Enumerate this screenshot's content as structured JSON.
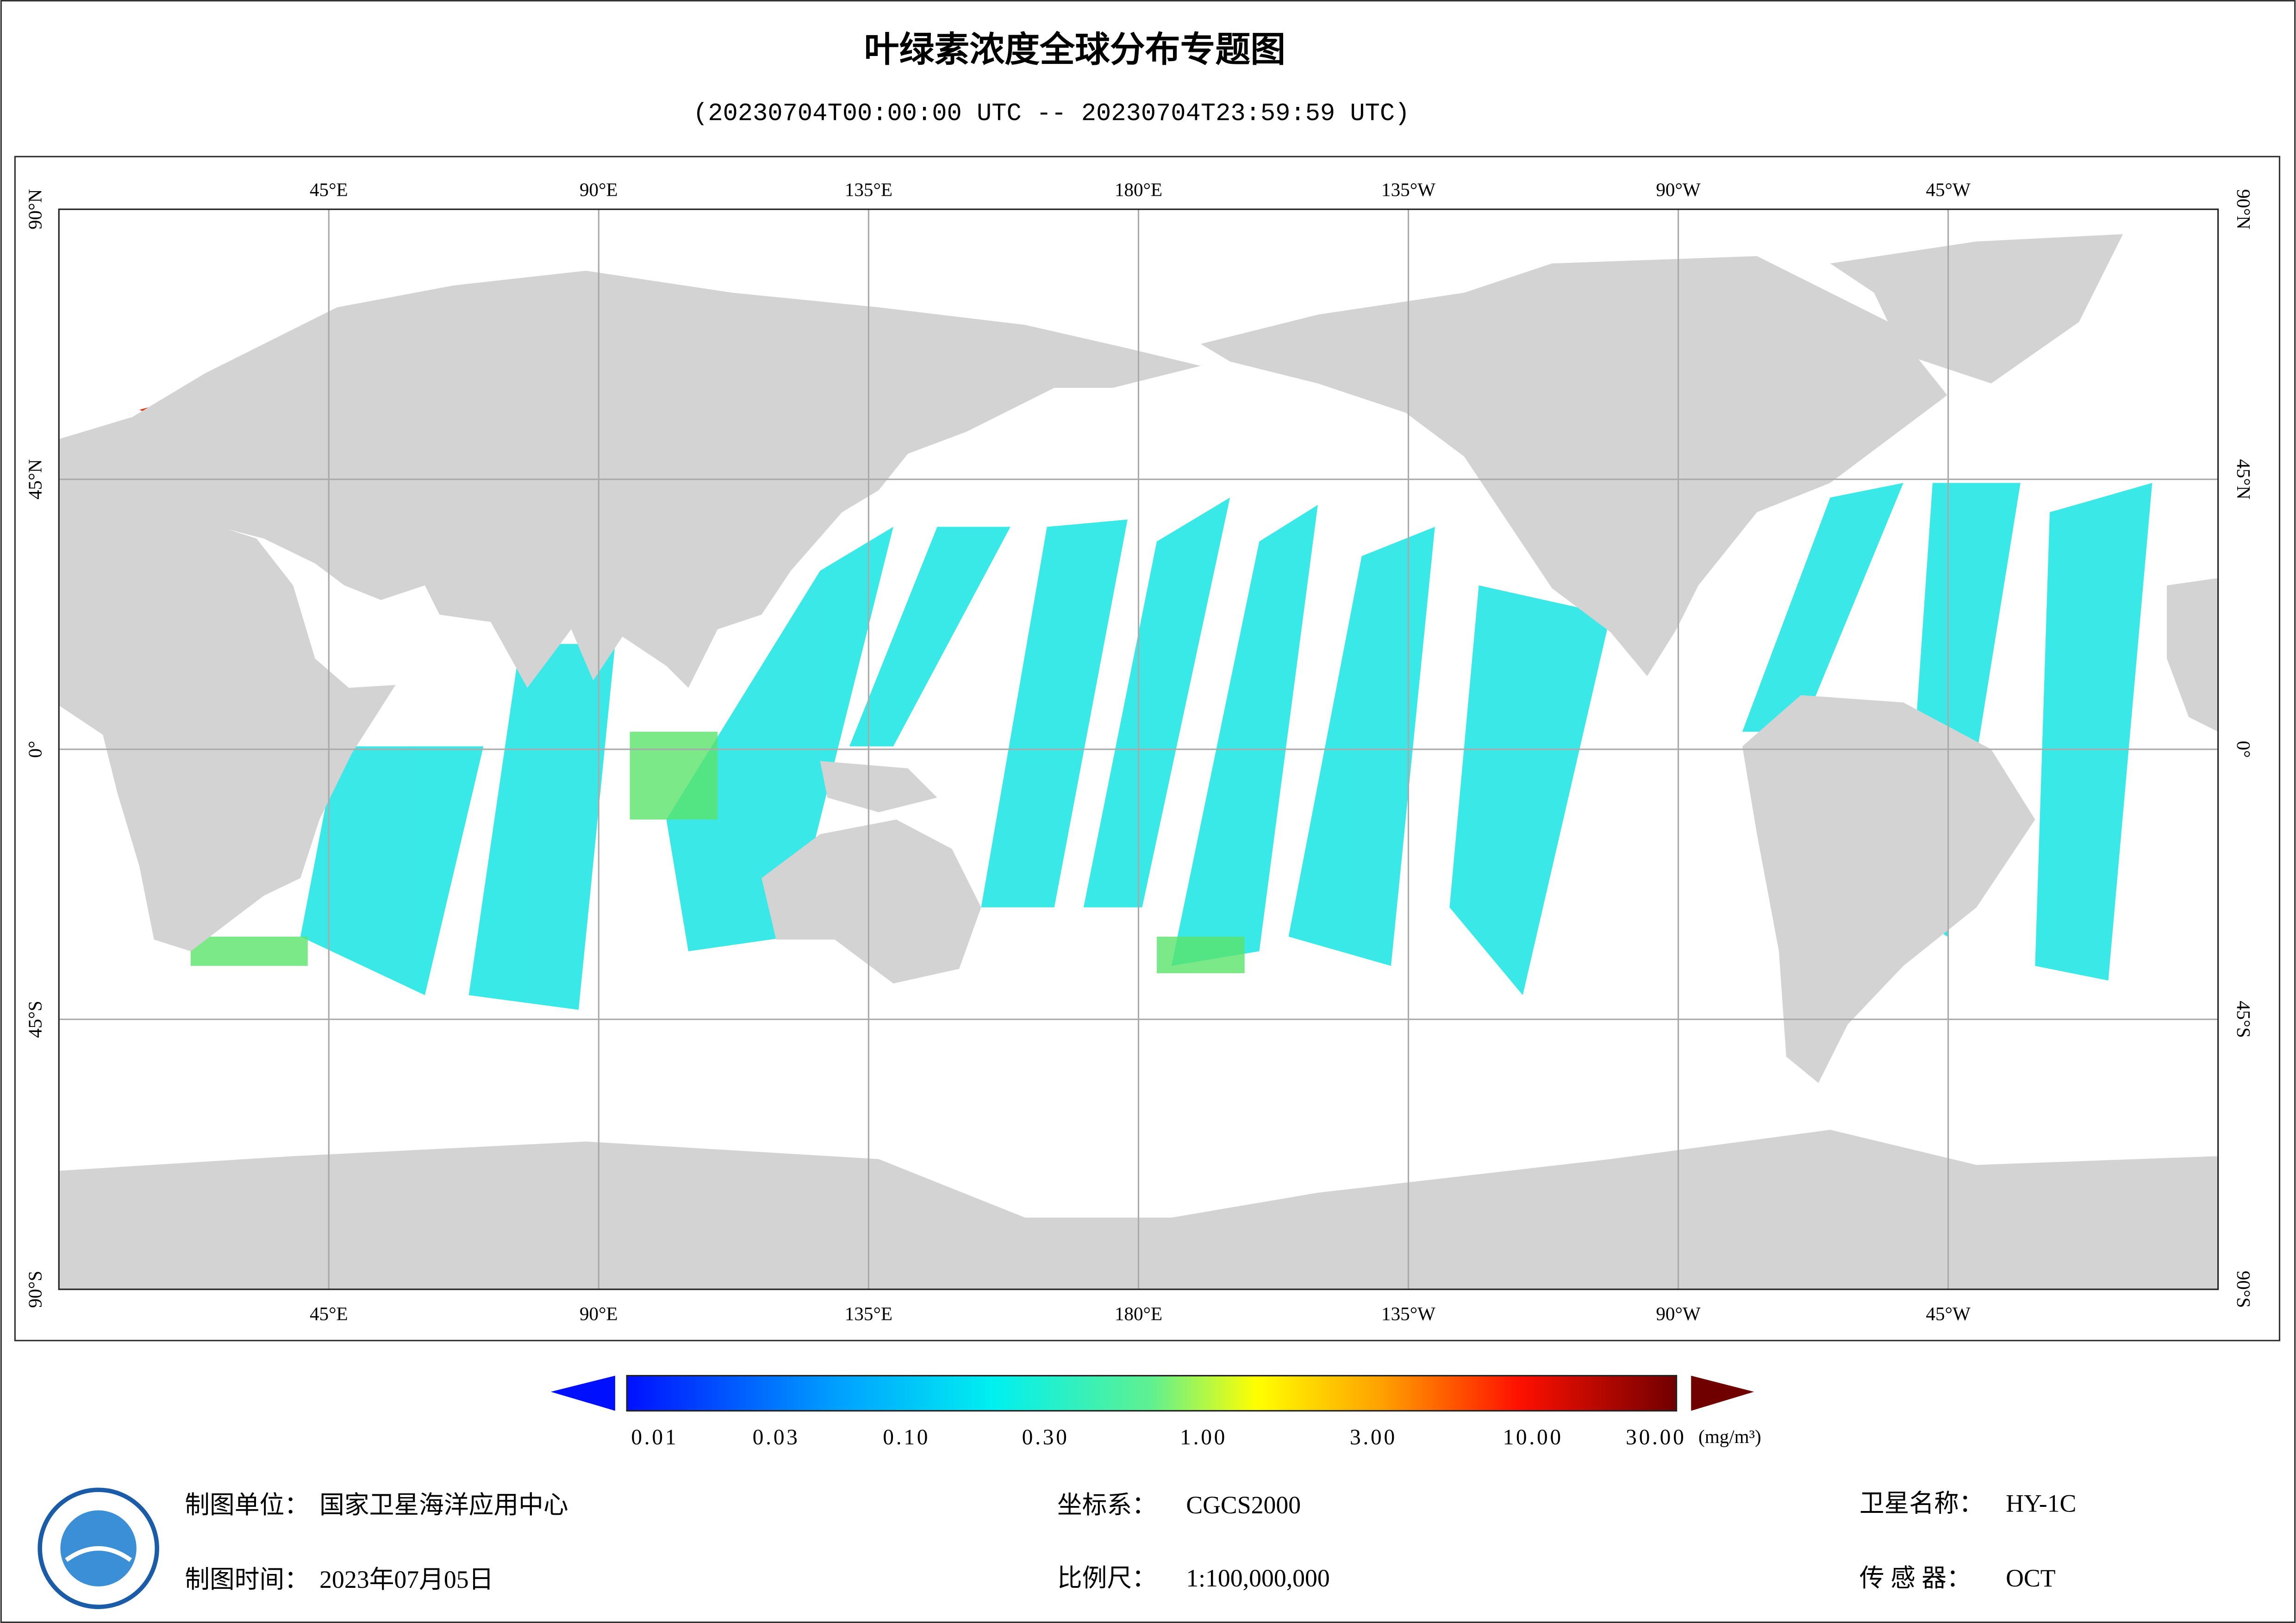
{
  "header": {
    "title": "叶绿素浓度全球分布专题图",
    "subtitle": "(20230704T00:00:00 UTC -- 20230704T23:59:59 UTC)"
  },
  "map": {
    "lon_labels": [
      "45°E",
      "90°E",
      "135°E",
      "180°E",
      "135°W",
      "90°W",
      "45°W"
    ],
    "lat_labels": [
      "90°N",
      "45°N",
      "0°",
      "45°S",
      "90°S"
    ]
  },
  "legend": {
    "labels": [
      "0.01",
      "0.03",
      "0.10",
      "0.30",
      "1.00",
      "3.00",
      "10.00",
      "30.00"
    ],
    "unit": "(mg/m³)"
  },
  "footer": {
    "items": [
      {
        "label": "制图单位：",
        "value": "国家卫星海洋应用中心"
      },
      {
        "label": "制图时间：",
        "value": "2023年07月05日"
      },
      {
        "label": "坐标系：",
        "value": "CGCS2000"
      },
      {
        "label": "比例尺：",
        "value": "1:100,000,000"
      },
      {
        "label": "卫星名称：",
        "value": "HY-1C"
      },
      {
        "label": "传 感 器：",
        "value": "OCT"
      }
    ]
  }
}
